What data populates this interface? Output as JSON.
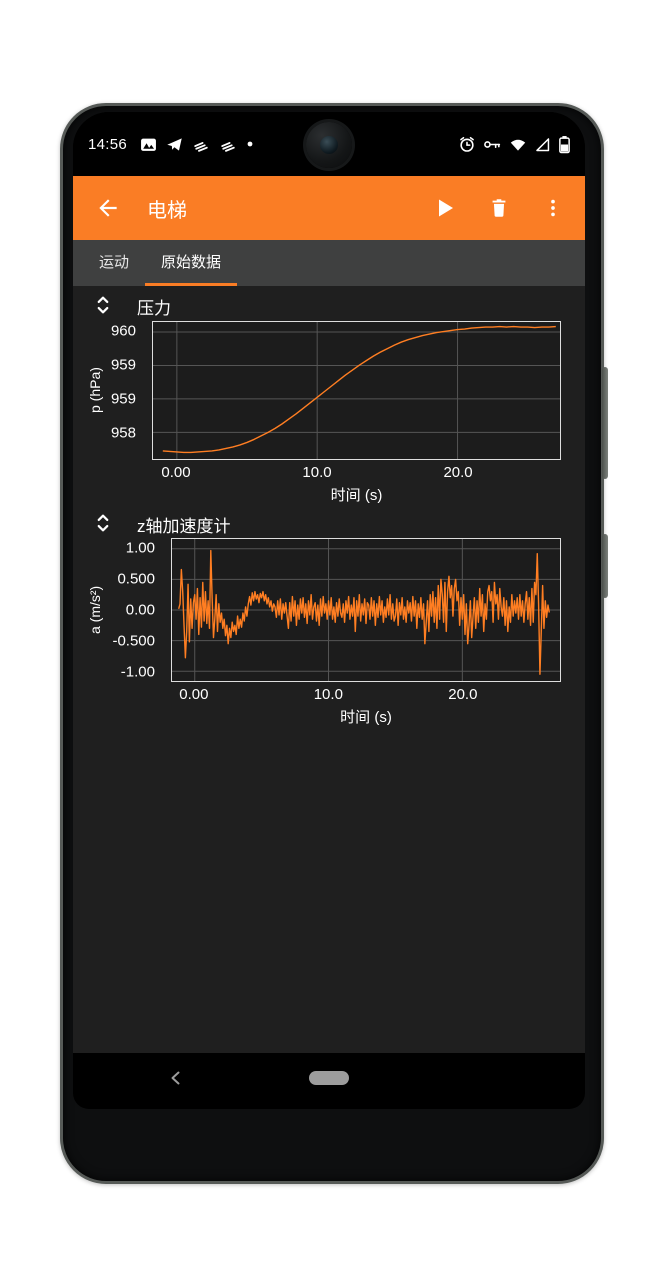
{
  "status_bar": {
    "time": "14:56",
    "left_icons": [
      "gallery",
      "telegram",
      "stripes",
      "stripes",
      "dot"
    ],
    "right_icons": [
      "alarm-clock",
      "vpn-key",
      "wifi-full",
      "cell-signal-empty",
      "battery"
    ],
    "battery_level": 0.55
  },
  "app_bar": {
    "title": "电梯",
    "actions": [
      "play",
      "delete",
      "more"
    ]
  },
  "tab_bar": {
    "tabs": [
      {
        "label": "运动",
        "selected": false
      },
      {
        "label": "原始数据",
        "selected": true
      }
    ]
  },
  "nav_bar": {
    "buttons": [
      "back",
      "home"
    ]
  },
  "colors": {
    "accent": "#fa7d25",
    "app_bar": "#fa7d25",
    "tab_bar": "#3f4040",
    "content_bg": "#1f1f1f",
    "plot_bg": "#1c1c1c",
    "grid": "#555555",
    "line": "#ff7e22",
    "text": "#ffffff"
  },
  "chart_data": [
    {
      "type": "line",
      "title": "压力",
      "ylabel": "p (hPa)",
      "xlabel": "时间 (s)",
      "xlim": [
        -1.7,
        27.3
      ],
      "ylim": [
        957.47,
        960.2
      ],
      "grid": true,
      "legend": "none",
      "line_color": "#ff7e22",
      "xticks": [
        {
          "v": 0,
          "label": "0.00"
        },
        {
          "v": 10,
          "label": "10.0"
        },
        {
          "v": 20,
          "label": "20.0"
        }
      ],
      "yticks": [
        {
          "v": 960.0,
          "label": "960"
        },
        {
          "v": 959.333,
          "label": "959"
        },
        {
          "v": 958.667,
          "label": "959"
        },
        {
          "v": 958.0,
          "label": "958"
        }
      ],
      "x_start": -1.0,
      "dx": 0.5,
      "values": [
        957.63,
        957.62,
        957.61,
        957.6,
        957.6,
        957.61,
        957.62,
        957.63,
        957.65,
        957.68,
        957.71,
        957.75,
        957.8,
        957.86,
        957.93,
        958.0,
        958.08,
        958.17,
        958.27,
        958.37,
        958.48,
        958.59,
        958.7,
        958.81,
        958.92,
        959.03,
        959.14,
        959.24,
        959.34,
        959.43,
        959.52,
        959.6,
        959.67,
        959.74,
        959.8,
        959.85,
        959.89,
        959.93,
        959.96,
        959.99,
        960.01,
        960.03,
        960.05,
        960.06,
        960.08,
        960.09,
        960.1,
        960.1,
        960.11,
        960.1,
        960.11,
        960.1,
        960.1,
        960.09,
        960.1,
        960.1,
        960.11
      ]
    },
    {
      "type": "line",
      "title": "z轴加速度计",
      "ylabel": "a (m/s²)",
      "xlabel": "时间 (s)",
      "xlim": [
        -1.7,
        27.3
      ],
      "ylim": [
        -1.16,
        1.16
      ],
      "grid": true,
      "legend": "none",
      "line_color": "#ff7e22",
      "xticks": [
        {
          "v": 0,
          "label": "0.00"
        },
        {
          "v": 10,
          "label": "10.0"
        },
        {
          "v": 20,
          "label": "20.0"
        }
      ],
      "yticks": [
        {
          "v": 1.0,
          "label": "1.00"
        },
        {
          "v": 0.5,
          "label": "0.500"
        },
        {
          "v": 0.0,
          "label": "0.00"
        },
        {
          "v": -0.5,
          "label": "-0.500"
        },
        {
          "v": -1.0,
          "label": "-1.00"
        }
      ],
      "x_start": -1.2,
      "dx": 0.1,
      "values": [
        0.02,
        0.1,
        0.66,
        0.3,
        -0.25,
        -0.78,
        -0.35,
        0.42,
        -0.52,
        0.18,
        -0.3,
        0.12,
        0.25,
        -0.15,
        0.35,
        -0.4,
        0.2,
        -0.28,
        0.45,
        -0.18,
        0.3,
        -0.22,
        0.15,
        -0.3,
        0.97,
        0.2,
        -0.45,
        -0.15,
        0.25,
        -0.35,
        0.1,
        -0.2,
        -0.05,
        -0.3,
        -0.15,
        -0.42,
        -0.25,
        -0.55,
        -0.3,
        -0.45,
        -0.2,
        -0.35,
        -0.25,
        -0.4,
        -0.1,
        -0.3,
        -0.15,
        -0.28,
        -0.05,
        -0.18,
        0.05,
        -0.1,
        0.1,
        0.22,
        0.08,
        0.28,
        0.15,
        0.3,
        0.18,
        0.25,
        0.12,
        0.27,
        0.2,
        0.3,
        0.15,
        0.25,
        0.1,
        0.2,
        0.05,
        0.15,
        -0.02,
        0.1,
        0.05,
        -0.12,
        0.15,
        -0.08,
        0.18,
        -0.15,
        0.1,
        -0.05,
        0.12,
        -0.1,
        -0.3,
        0.12,
        -0.18,
        0.22,
        -0.1,
        0.15,
        -0.25,
        0.08,
        -0.15,
        0.18,
        -0.05,
        0.2,
        -0.12,
        0.1,
        -0.22,
        0.15,
        -0.08,
        0.25,
        -0.15,
        0.05,
        0.12,
        -0.18,
        0.08,
        -0.25,
        0.18,
        -0.1,
        0.22,
        -0.05,
        0.1,
        -0.15,
        0.15,
        -0.08,
        0.2,
        -0.15,
        0.05,
        -0.2,
        0.12,
        -0.1,
        0.18,
        -0.05,
        -0.12,
        0.1,
        -0.2,
        0.15,
        -0.05,
        0.22,
        -0.15,
        0.08,
        -0.1,
        0.2,
        -0.35,
        0.15,
        -0.1,
        0.25,
        -0.18,
        0.1,
        -0.08,
        0.18,
        -0.22,
        0.12,
        0.08,
        -0.15,
        0.2,
        -0.1,
        0.15,
        -0.25,
        0.1,
        -0.12,
        0.22,
        -0.08,
        0.15,
        -0.2,
        0.05,
        -0.12,
        0.18,
        -0.08,
        0.25,
        -0.15,
        0.1,
        -0.18,
        -0.1,
        0.18,
        -0.25,
        0.12,
        -0.08,
        0.2,
        -0.15,
        0.05,
        -0.2,
        0.15,
        -0.05,
        0.12,
        -0.18,
        0.22,
        -0.1,
        0.15,
        -0.3,
        0.1,
        -0.12,
        0.2,
        -0.15,
        0.1,
        -0.55,
        -0.2,
        0.15,
        -0.35,
        0.25,
        -0.1,
        0.3,
        -0.2,
        0.2,
        -0.3,
        0.4,
        -0.15,
        0.5,
        0.25,
        -0.2,
        0.45,
        -0.35,
        0.3,
        0.55,
        0.2,
        0.4,
        -0.1,
        0.35,
        0.5,
        0.15,
        0.3,
        -0.25,
        0.2,
        -0.15,
        0.25,
        -0.4,
        0.1,
        -0.55,
        -0.25,
        0.15,
        -0.45,
        -0.1,
        0.2,
        -0.3,
        0.15,
        -0.2,
        0.35,
        -0.1,
        0.25,
        -0.35,
        0.1,
        -0.15,
        0.3,
        0.4,
        0.15,
        0.3,
        -0.2,
        0.45,
        0.1,
        0.25,
        -0.15,
        0.35,
        0.05,
        -0.1,
        0.2,
        -0.25,
        0.15,
        -0.35,
        0.05,
        -0.2,
        0.25,
        -0.1,
        0.15,
        -0.05,
        0.2,
        -0.15,
        0.25,
        -0.1,
        0.15,
        -0.2,
        0.1,
        0.3,
        -0.15,
        0.2,
        -0.25,
        0.35,
        -0.2,
        0.45,
        0.25,
        0.92,
        0.1,
        -1.05,
        -0.35,
        0.4,
        -0.3,
        0.15,
        -0.12,
        0.08,
        -0.04
      ]
    }
  ]
}
